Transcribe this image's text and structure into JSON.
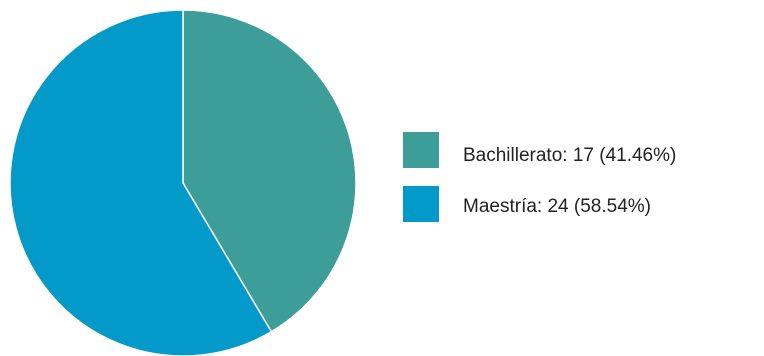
{
  "chart_data": {
    "type": "pie",
    "title": "",
    "legend_position": "right",
    "slices": [
      {
        "label": "Bachillerato",
        "value": 17,
        "percent": 41.46,
        "color": "#3d9e99",
        "legend_text": "Bachillerato: 17 (41.46%)"
      },
      {
        "label": "Maestría",
        "value": 24,
        "percent": 58.54,
        "color": "#0399c9",
        "legend_text": "Maestría: 24 (58.54%)"
      }
    ]
  }
}
